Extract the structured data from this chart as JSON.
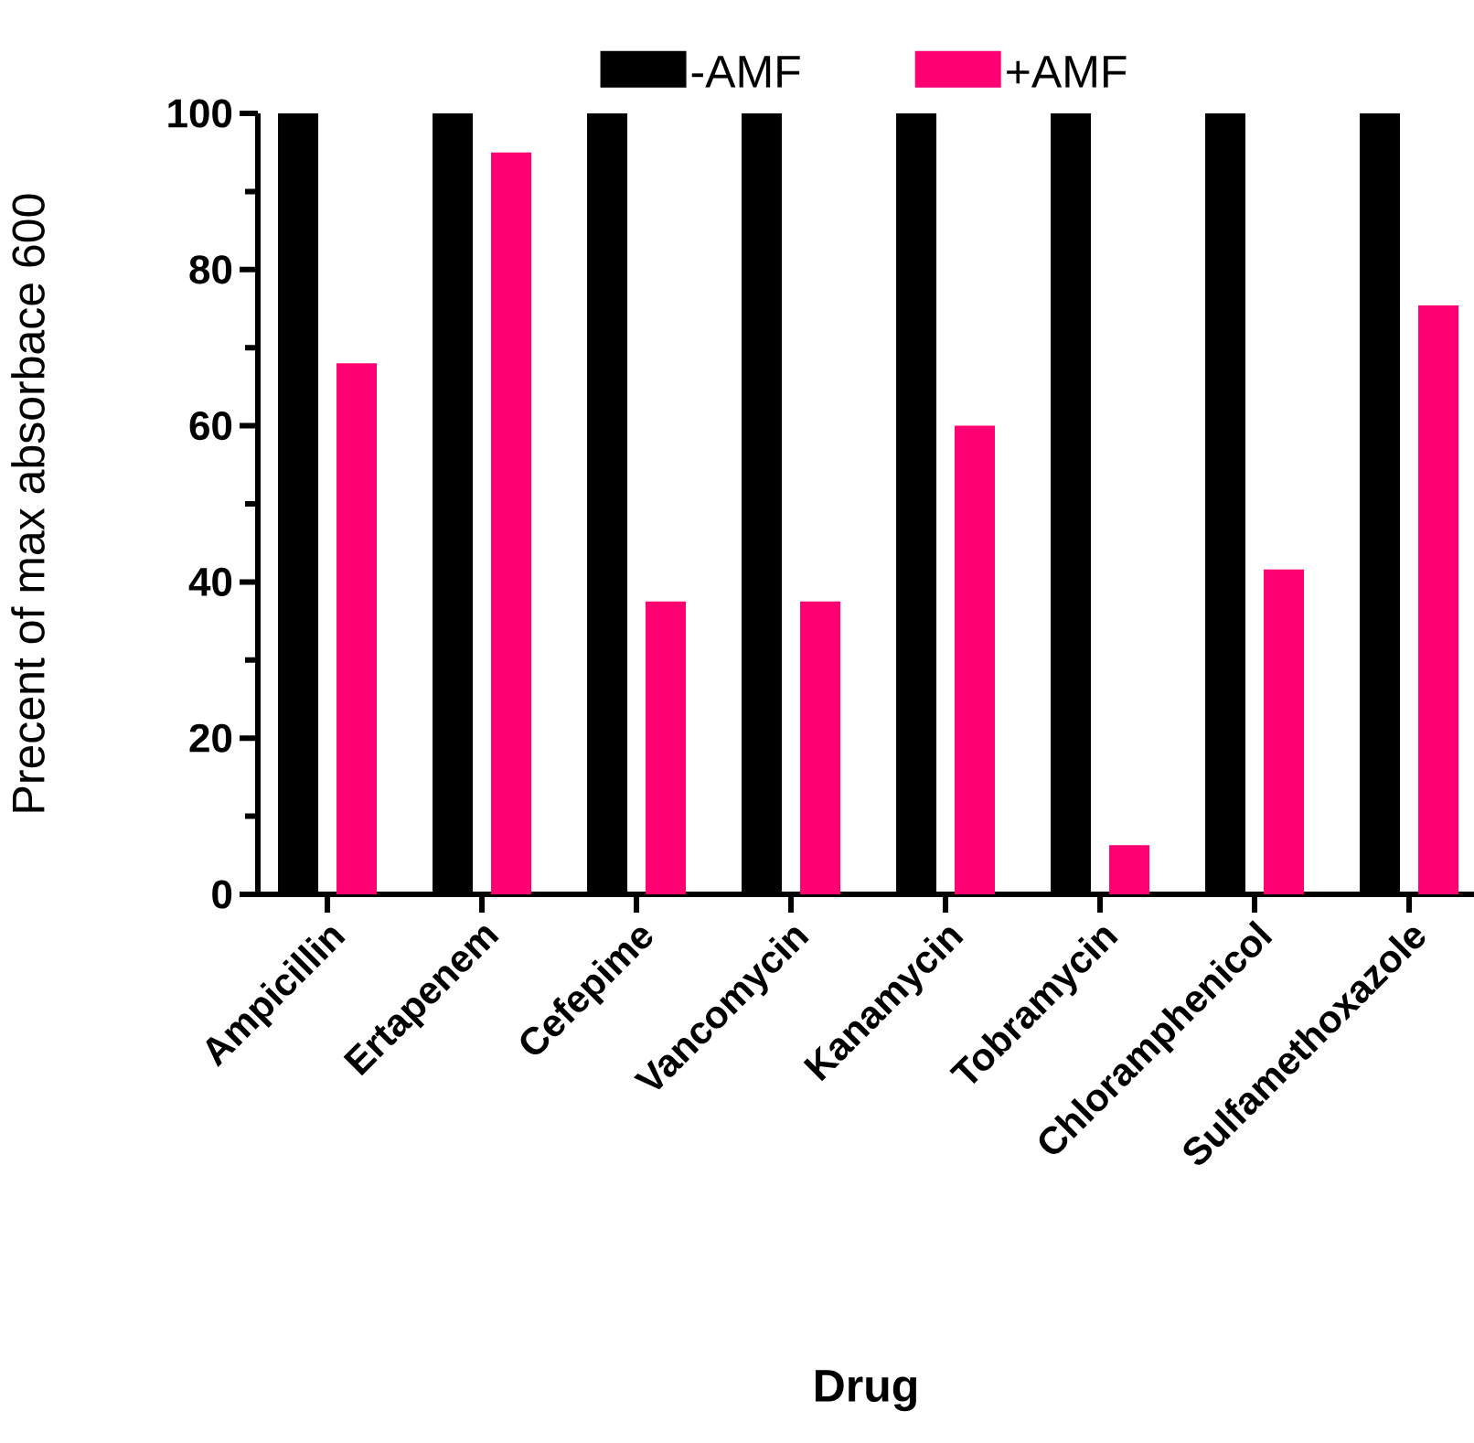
{
  "chart_data": {
    "type": "bar",
    "xlabel": "Drug",
    "ylabel": "Precent of max absorbace 600",
    "categories": [
      "Ampicillin",
      "Ertapenem",
      "Cefepime",
      "Vancomycin",
      "Kanamycin",
      "Tobramycin",
      "Chloramphenicol",
      "Sulfamethoxazole"
    ],
    "series": [
      {
        "name": "-AMF",
        "color": "#000000",
        "values": [
          100,
          100,
          100,
          100,
          100,
          100,
          100,
          100
        ]
      },
      {
        "name": "+AMF",
        "color": "#ff0073",
        "values": [
          68,
          95,
          37.5,
          37.5,
          60,
          6.3,
          41.6,
          75.4
        ]
      }
    ],
    "ylim": [
      0,
      100
    ],
    "yticks": [
      0,
      20,
      40,
      60,
      80,
      100
    ],
    "legend": "top"
  }
}
